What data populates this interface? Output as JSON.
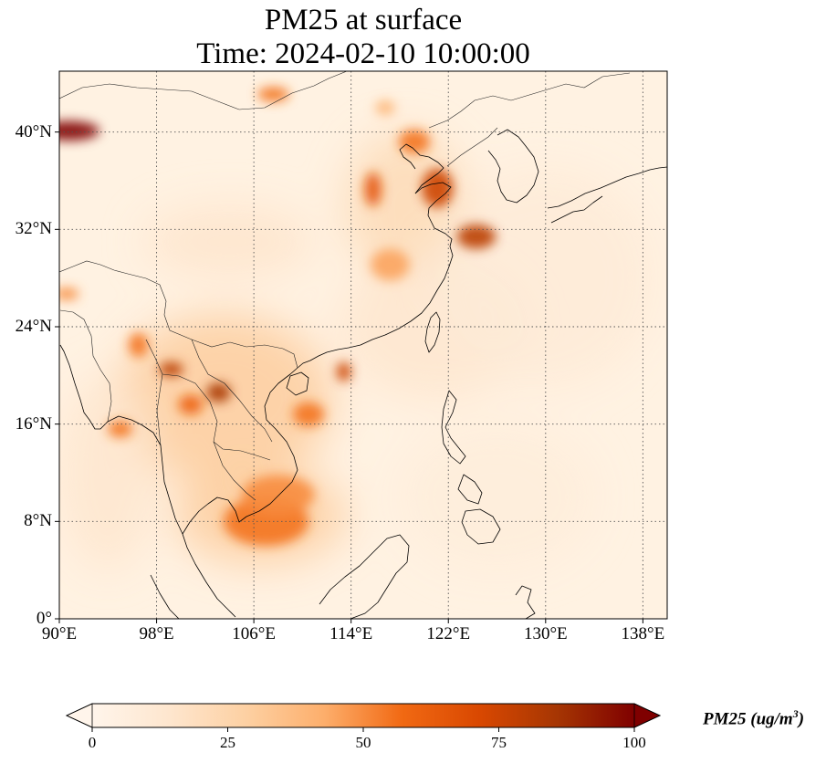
{
  "title": {
    "line1": "PM25 at surface",
    "line2": "Time: 2024-02-10 10:00:00"
  },
  "map": {
    "lon_range": [
      90,
      140
    ],
    "lat_range": [
      0,
      45
    ],
    "gridlines": true,
    "gridline_style": "dotted",
    "lat_ticks": [
      {
        "value": 40,
        "label": "40°N"
      },
      {
        "value": 32,
        "label": "32°N"
      },
      {
        "value": 24,
        "label": "24°N"
      },
      {
        "value": 16,
        "label": "16°N"
      },
      {
        "value": 8,
        "label": "8°N"
      },
      {
        "value": 0,
        "label": "0°"
      }
    ],
    "lon_ticks": [
      {
        "value": 90,
        "label": "90°E"
      },
      {
        "value": 98,
        "label": "98°E"
      },
      {
        "value": 106,
        "label": "106°E"
      },
      {
        "value": 114,
        "label": "114°E"
      },
      {
        "value": 122,
        "label": "122°E"
      },
      {
        "value": 130,
        "label": "130°E"
      },
      {
        "value": 138,
        "label": "138°E"
      }
    ],
    "hotspots": [
      {
        "lon": 90.8,
        "lat": 40.1,
        "value": 100,
        "rx": 2.5,
        "ry": 0.8
      },
      {
        "lon": 124.3,
        "lat": 31.4,
        "value": 80,
        "rx": 1.6,
        "ry": 1.0
      },
      {
        "lon": 121.1,
        "lat": 35.4,
        "value": 75,
        "rx": 1.3,
        "ry": 1.6
      },
      {
        "lon": 115.8,
        "lat": 35.3,
        "value": 65,
        "rx": 0.7,
        "ry": 1.4
      },
      {
        "lon": 119.2,
        "lat": 39.2,
        "value": 55,
        "rx": 1.3,
        "ry": 1.0
      },
      {
        "lon": 117.2,
        "lat": 29.1,
        "value": 45,
        "rx": 1.6,
        "ry": 1.3
      },
      {
        "lon": 103.1,
        "lat": 18.6,
        "value": 85,
        "rx": 1.0,
        "ry": 0.8
      },
      {
        "lon": 99.2,
        "lat": 20.5,
        "value": 80,
        "rx": 1.0,
        "ry": 0.6
      },
      {
        "lon": 100.8,
        "lat": 17.6,
        "value": 60,
        "rx": 1.0,
        "ry": 0.8
      },
      {
        "lon": 113.4,
        "lat": 20.3,
        "value": 75,
        "rx": 0.6,
        "ry": 0.8
      },
      {
        "lon": 110.5,
        "lat": 16.8,
        "value": 55,
        "rx": 1.3,
        "ry": 1.0
      },
      {
        "lon": 95.0,
        "lat": 15.6,
        "value": 55,
        "rx": 1.0,
        "ry": 0.7
      },
      {
        "lon": 96.5,
        "lat": 22.5,
        "value": 55,
        "rx": 0.8,
        "ry": 1.0
      },
      {
        "lon": 107.0,
        "lat": 8.0,
        "value": 55,
        "rx": 3.5,
        "ry": 2.0
      },
      {
        "lon": 108.0,
        "lat": 10.2,
        "value": 50,
        "rx": 3.0,
        "ry": 1.6
      },
      {
        "lon": 107.6,
        "lat": 43.1,
        "value": 55,
        "rx": 1.3,
        "ry": 0.6
      },
      {
        "lon": 116.8,
        "lat": 42.0,
        "value": 40,
        "rx": 0.8,
        "ry": 0.6
      },
      {
        "lon": 90.6,
        "lat": 26.7,
        "value": 50,
        "rx": 1.0,
        "ry": 0.5
      }
    ],
    "regions": [
      {
        "lon": 103.5,
        "lat": 18.0,
        "value": 30,
        "rx": 9.0,
        "ry": 7.0
      },
      {
        "lon": 106.5,
        "lat": 8.5,
        "value": 30,
        "rx": 7.0,
        "ry": 4.0
      },
      {
        "lon": 118.5,
        "lat": 34.0,
        "value": 22,
        "rx": 5.0,
        "ry": 6.0
      },
      {
        "lon": 104.0,
        "lat": 31.0,
        "value": 15,
        "rx": 7.0,
        "ry": 3.0
      },
      {
        "lon": 121.0,
        "lat": 24.0,
        "value": 14,
        "rx": 8.0,
        "ry": 6.0
      },
      {
        "lon": 130.0,
        "lat": 28.0,
        "value": 10,
        "rx": 9.0,
        "ry": 9.0
      },
      {
        "lon": 94.0,
        "lat": 12.0,
        "value": 14,
        "rx": 4.0,
        "ry": 8.0
      },
      {
        "lon": 126.0,
        "lat": 10.0,
        "value": 8,
        "rx": 8.0,
        "ry": 6.0
      }
    ]
  },
  "colorbar": {
    "vmin": 0,
    "vmax": 100,
    "colors": [
      "#fff5eb",
      "#fee6ce",
      "#fdd0a2",
      "#fdae6b",
      "#f16913",
      "#d94801",
      "#a63603",
      "#7f0000"
    ],
    "extend": "both",
    "ticks": [
      {
        "value": 0,
        "label": "0"
      },
      {
        "value": 25,
        "label": "25"
      },
      {
        "value": 50,
        "label": "50"
      },
      {
        "value": 75,
        "label": "75"
      },
      {
        "value": 100,
        "label": "100"
      }
    ],
    "label_main": "PM25 (ug/m",
    "label_sup": "3",
    "label_close": ")"
  }
}
